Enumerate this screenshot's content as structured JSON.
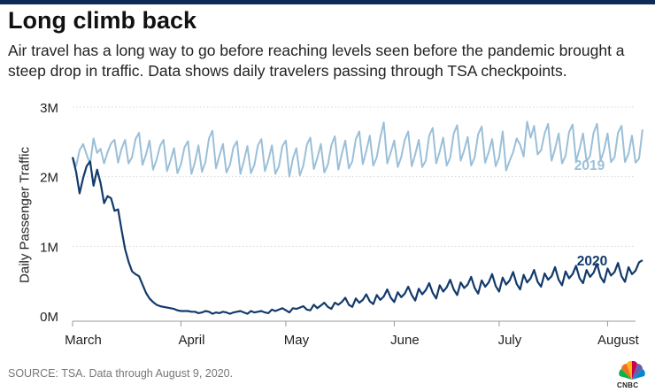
{
  "header": {
    "title": "Long climb back",
    "subtitle": "Air travel has a long way to go before reaching levels seen before the pandemic brought a steep drop in traffic. Data shows daily travelers passing through TSA checkpoints."
  },
  "footer": {
    "source": "SOURCE: TSA. Data through August 9, 2020.",
    "brand": "CNBC"
  },
  "colors": {
    "series_2019": "#9bbfd8",
    "series_2020": "#123a6b",
    "topbar": "#0f2a57"
  },
  "chart_data": {
    "type": "line",
    "title": "Long climb back",
    "xlabel": "",
    "ylabel": "Daily Passenger Traffic",
    "ylim": [
      0,
      3000000
    ],
    "xlim": [
      1,
      162
    ],
    "yticks": [
      {
        "value": 0,
        "label": "0M"
      },
      {
        "value": 1000000,
        "label": "1M"
      },
      {
        "value": 2000000,
        "label": "2M"
      },
      {
        "value": 3000000,
        "label": "3M"
      }
    ],
    "xticks": [
      {
        "day": 1,
        "label": "March"
      },
      {
        "day": 32,
        "label": "April"
      },
      {
        "day": 62,
        "label": "May"
      },
      {
        "day": 93,
        "label": "June"
      },
      {
        "day": 123,
        "label": "July"
      },
      {
        "day": 154,
        "label": "August"
      }
    ],
    "grid": "horizontal",
    "series": [
      {
        "name": "2019",
        "label": "2019",
        "color": "#9bbfd8",
        "weekly_pattern": [
          0.99,
          1.06,
          0.89,
          0.93,
          1.09,
          1.13,
          0.91
        ],
        "values": [
          2280000,
          2150000,
          2380000,
          2470000,
          2320000,
          2180000,
          2550000,
          2340000,
          2400000,
          2190000,
          2350000,
          2480000,
          2530000,
          2200000,
          2400000,
          2530000,
          2190000,
          2280000,
          2540000,
          2630000,
          2170000,
          2320000,
          2520000,
          2100000,
          2240000,
          2440000,
          2530000,
          2080000,
          2230000,
          2410000,
          2050000,
          2180000,
          2420000,
          2510000,
          2040000,
          2210000,
          2450000,
          2070000,
          2210000,
          2550000,
          2660000,
          2120000,
          2300000,
          2470000,
          2060000,
          2170000,
          2420000,
          2510000,
          2040000,
          2230000,
          2440000,
          2050000,
          2170000,
          2450000,
          2540000,
          2080000,
          2240000,
          2450000,
          2040000,
          2150000,
          2440000,
          2520000,
          2000000,
          2260000,
          2410000,
          2020000,
          2160000,
          2460000,
          2560000,
          2110000,
          2270000,
          2470000,
          2060000,
          2170000,
          2450000,
          2580000,
          2100000,
          2330000,
          2520000,
          2120000,
          2220000,
          2540000,
          2650000,
          2180000,
          2370000,
          2590000,
          2160000,
          2280000,
          2560000,
          2780000,
          2190000,
          2350000,
          2520000,
          2140000,
          2280000,
          2530000,
          2650000,
          2150000,
          2320000,
          2530000,
          2140000,
          2230000,
          2590000,
          2700000,
          2190000,
          2360000,
          2560000,
          2160000,
          2270000,
          2620000,
          2740000,
          2230000,
          2380000,
          2570000,
          2160000,
          2280000,
          2610000,
          2720000,
          2200000,
          2350000,
          2540000,
          2150000,
          2280000,
          2650000,
          2090000,
          2230000,
          2350000,
          2550000,
          2460000,
          2290000,
          2790000,
          2560000,
          2730000,
          2320000,
          2380000,
          2620000,
          2760000,
          2230000,
          2400000,
          2620000,
          2190000,
          2300000,
          2640000,
          2750000,
          2220000,
          2400000,
          2620000,
          2220000,
          2300000,
          2630000,
          2760000,
          2230000,
          2380000,
          2620000,
          2210000,
          2280000,
          2630000,
          2730000,
          2210000,
          2330000,
          2590000,
          2200000,
          2260000,
          2680000
        ]
      },
      {
        "name": "2020",
        "label": "2020",
        "color": "#123a6b",
        "values": [
          2280000,
          2070000,
          1760000,
          1980000,
          2150000,
          2220000,
          1870000,
          2100000,
          1910000,
          1620000,
          1720000,
          1690000,
          1510000,
          1530000,
          1240000,
          960000,
          780000,
          640000,
          600000,
          570000,
          450000,
          330000,
          250000,
          200000,
          160000,
          140000,
          130000,
          120000,
          110000,
          100000,
          80000,
          70000,
          70000,
          70000,
          60000,
          60000,
          40000,
          50000,
          70000,
          60000,
          30000,
          50000,
          40000,
          60000,
          50000,
          30000,
          50000,
          60000,
          70000,
          50000,
          30000,
          70000,
          50000,
          60000,
          70000,
          50000,
          40000,
          90000,
          70000,
          90000,
          110000,
          80000,
          50000,
          110000,
          100000,
          120000,
          140000,
          90000,
          80000,
          160000,
          110000,
          150000,
          190000,
          130000,
          100000,
          190000,
          160000,
          200000,
          260000,
          160000,
          130000,
          250000,
          190000,
          230000,
          310000,
          210000,
          170000,
          300000,
          230000,
          280000,
          380000,
          260000,
          200000,
          340000,
          270000,
          320000,
          420000,
          300000,
          220000,
          390000,
          310000,
          370000,
          470000,
          330000,
          250000,
          440000,
          350000,
          410000,
          520000,
          380000,
          300000,
          480000,
          400000,
          450000,
          560000,
          400000,
          320000,
          510000,
          420000,
          480000,
          600000,
          430000,
          350000,
          550000,
          450000,
          510000,
          630000,
          460000,
          380000,
          590000,
          480000,
          540000,
          660000,
          490000,
          420000,
          610000,
          520000,
          570000,
          700000,
          520000,
          440000,
          640000,
          540000,
          600000,
          720000,
          540000,
          470000,
          660000,
          560000,
          620000,
          750000,
          560000,
          480000,
          680000,
          580000,
          630000,
          760000,
          570000,
          490000,
          700000,
          600000,
          650000,
          770000,
          800000
        ]
      }
    ]
  }
}
